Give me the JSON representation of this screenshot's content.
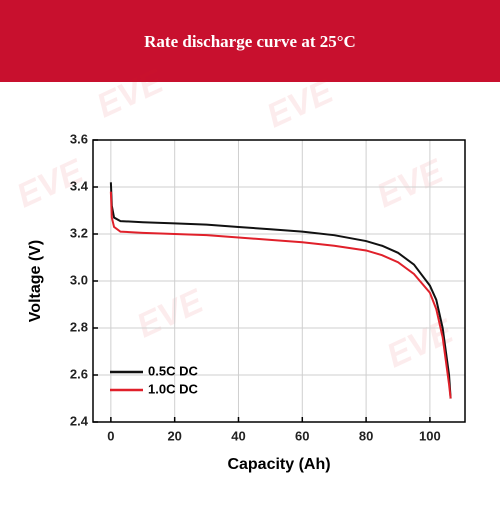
{
  "chart_data": {
    "type": "line",
    "title": "Rate discharge curve at 25°C",
    "watermark": "EVE",
    "xlabel": "Capacity (Ah)",
    "ylabel": "Voltage (V)",
    "xlim": [
      -5.6,
      111
    ],
    "ylim": [
      2.4,
      3.6
    ],
    "xticks": [
      0,
      20,
      40,
      60,
      80,
      100
    ],
    "yticks": [
      2.4,
      2.6,
      {
        "value": 2.8,
        "label": "2.8"
      },
      {
        "value": 3.0,
        "label": "3.0"
      },
      3.2,
      3.4,
      3.6
    ],
    "grid": true,
    "legend": "lower left",
    "series": [
      {
        "name": "0.5C DC",
        "color": "#111111",
        "x": [
          0,
          0.3,
          1,
          3,
          10,
          20,
          30,
          40,
          50,
          60,
          70,
          80,
          85,
          90,
          95,
          100,
          102,
          104,
          105,
          106,
          106.5
        ],
        "values": [
          3.42,
          3.32,
          3.27,
          3.255,
          3.25,
          3.245,
          3.24,
          3.23,
          3.22,
          3.21,
          3.195,
          3.17,
          3.15,
          3.12,
          3.07,
          2.98,
          2.92,
          2.8,
          2.7,
          2.6,
          2.5
        ]
      },
      {
        "name": "1.0C DC",
        "color": "#e0202a",
        "x": [
          0,
          0.3,
          1,
          3,
          10,
          20,
          30,
          40,
          50,
          60,
          70,
          80,
          85,
          90,
          95,
          100,
          102,
          104,
          105,
          106,
          106.5
        ],
        "values": [
          3.38,
          3.27,
          3.23,
          3.21,
          3.205,
          3.2,
          3.195,
          3.185,
          3.175,
          3.165,
          3.15,
          3.13,
          3.11,
          3.08,
          3.03,
          2.95,
          2.88,
          2.76,
          2.66,
          2.56,
          2.5
        ]
      }
    ]
  }
}
